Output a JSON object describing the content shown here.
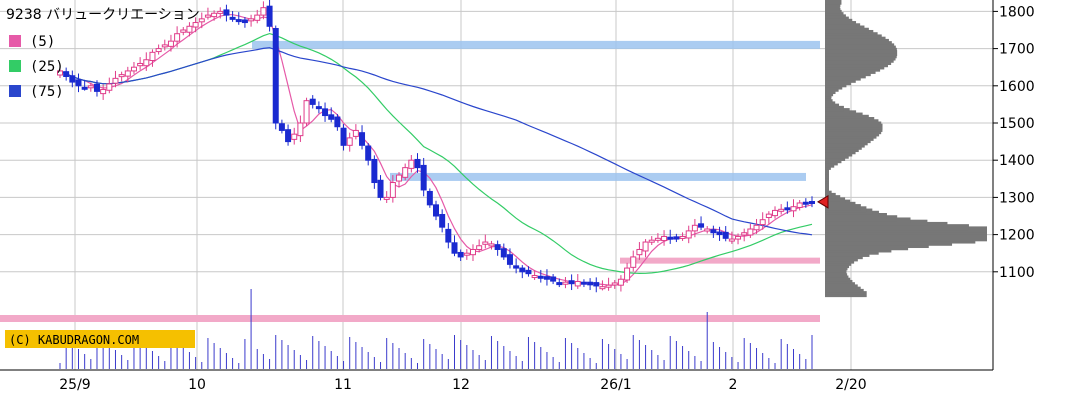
{
  "chart_data": {
    "type": "candlestick",
    "title": "9238 バリュークリエーション",
    "legend": [
      {
        "label": "(5)",
        "color": "#e65aa8"
      },
      {
        "label": "(25)",
        "color": "#33cc66"
      },
      {
        "label": "(75)",
        "color": "#2a46cc"
      }
    ],
    "copyright": "(C) KABUDRAGON.COM",
    "x_tick_labels": [
      "25/9",
      "10",
      "11",
      "12",
      "26/1",
      "2",
      "2/20"
    ],
    "y_tick_labels": [
      "1800",
      "1700",
      "1600",
      "1500",
      "1400",
      "1300",
      "1200",
      "1100"
    ],
    "ylim": [
      1000,
      1830
    ],
    "last_price": 1288,
    "resistance_levels": [
      1710,
      1355
    ],
    "support_levels": [
      1130
    ],
    "candles_close": [
      1640,
      1625,
      1610,
      1600,
      1595,
      1600,
      1585,
      1590,
      1605,
      1620,
      1630,
      1640,
      1650,
      1660,
      1670,
      1690,
      1700,
      1710,
      1720,
      1740,
      1750,
      1760,
      1770,
      1780,
      1790,
      1795,
      1800,
      1790,
      1780,
      1775,
      1770,
      1780,
      1790,
      1810,
      1760,
      1500,
      1480,
      1450,
      1470,
      1500,
      1560,
      1550,
      1540,
      1520,
      1510,
      1490,
      1440,
      1460,
      1480,
      1440,
      1400,
      1340,
      1300,
      1300,
      1340,
      1360,
      1380,
      1400,
      1380,
      1320,
      1280,
      1250,
      1220,
      1180,
      1150,
      1140,
      1150,
      1160,
      1170,
      1180,
      1175,
      1160,
      1140,
      1120,
      1110,
      1100,
      1095,
      1090,
      1085,
      1080,
      1075,
      1070,
      1072,
      1068,
      1074,
      1070,
      1065,
      1062,
      1060,
      1064,
      1070,
      1080,
      1110,
      1140,
      1160,
      1180,
      1185,
      1190,
      1195,
      1192,
      1188,
      1195,
      1210,
      1225,
      1220,
      1215,
      1205,
      1200,
      1190,
      1188,
      1195,
      1205,
      1215,
      1225,
      1240,
      1255,
      1265,
      1268,
      1270,
      1275,
      1285,
      1283,
      1288
    ],
    "volume_profile_note": "horizontal price-volume histogram at right",
    "grid": true,
    "legend_position": "top-left"
  }
}
